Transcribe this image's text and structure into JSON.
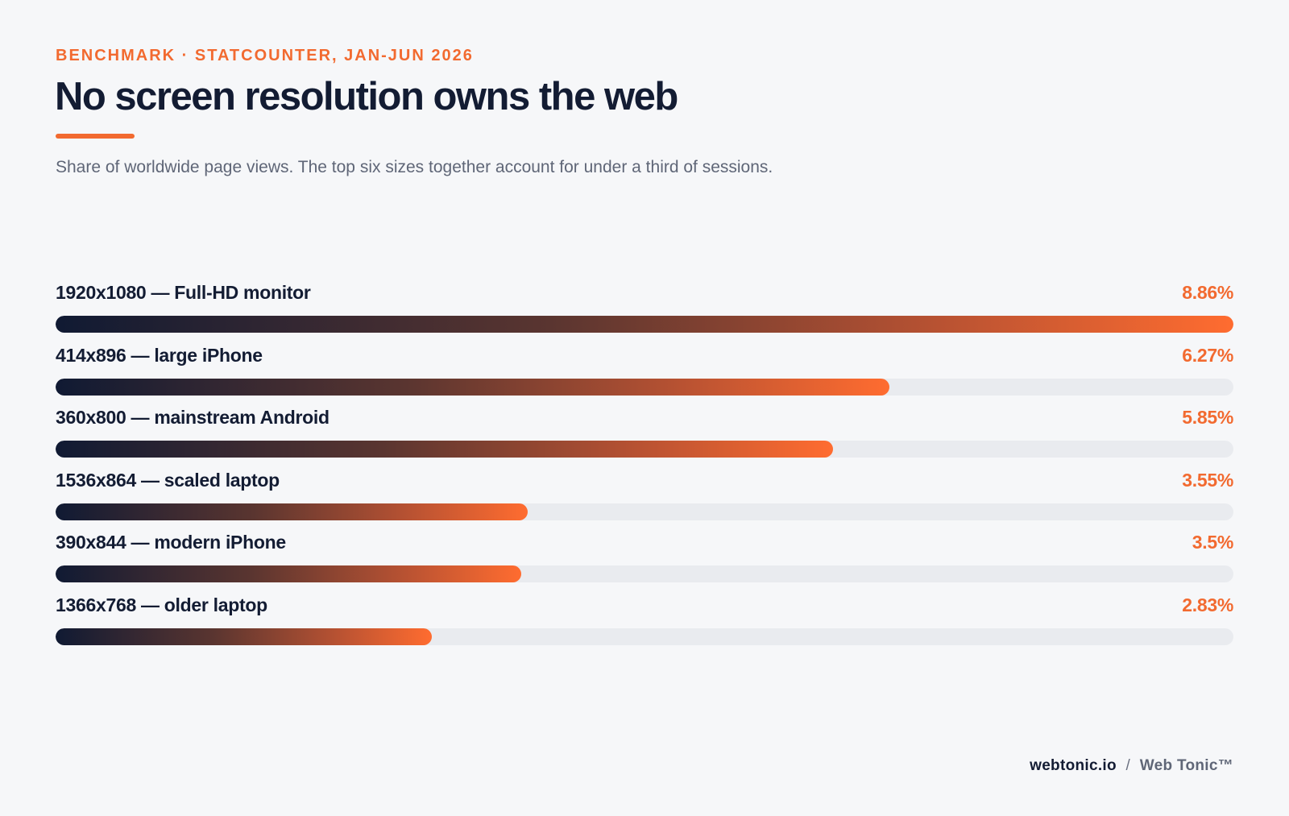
{
  "header": {
    "kicker": "BENCHMARK · STATCOUNTER, JAN-JUN 2026",
    "title": "No screen resolution owns the web",
    "subtitle": "Share of worldwide page views. The top six sizes together account for under a third of sessions."
  },
  "colors": {
    "accent": "#f26a30",
    "navy": "#131c33",
    "track": "#e9ebef",
    "background": "#f6f7f9"
  },
  "chart_data": {
    "type": "bar",
    "orientation": "horizontal",
    "categories": [
      "1920x1080 — Full-HD monitor",
      "414x896 — large iPhone",
      "360x800 — mainstream Android",
      "1536x864 — scaled laptop",
      "390x844 — modern iPhone",
      "1366x768 — older laptop"
    ],
    "values": [
      8.86,
      6.27,
      5.85,
      3.55,
      3.5,
      2.83
    ],
    "value_labels": [
      "8.86%",
      "6.27%",
      "5.85%",
      "3.55%",
      "3.5%",
      "2.83%"
    ],
    "xlim": [
      0,
      8.86
    ],
    "grid": false,
    "legend": "none"
  },
  "footer": {
    "site": "webtonic.io",
    "separator": "/",
    "brand": "Web Tonic™"
  }
}
